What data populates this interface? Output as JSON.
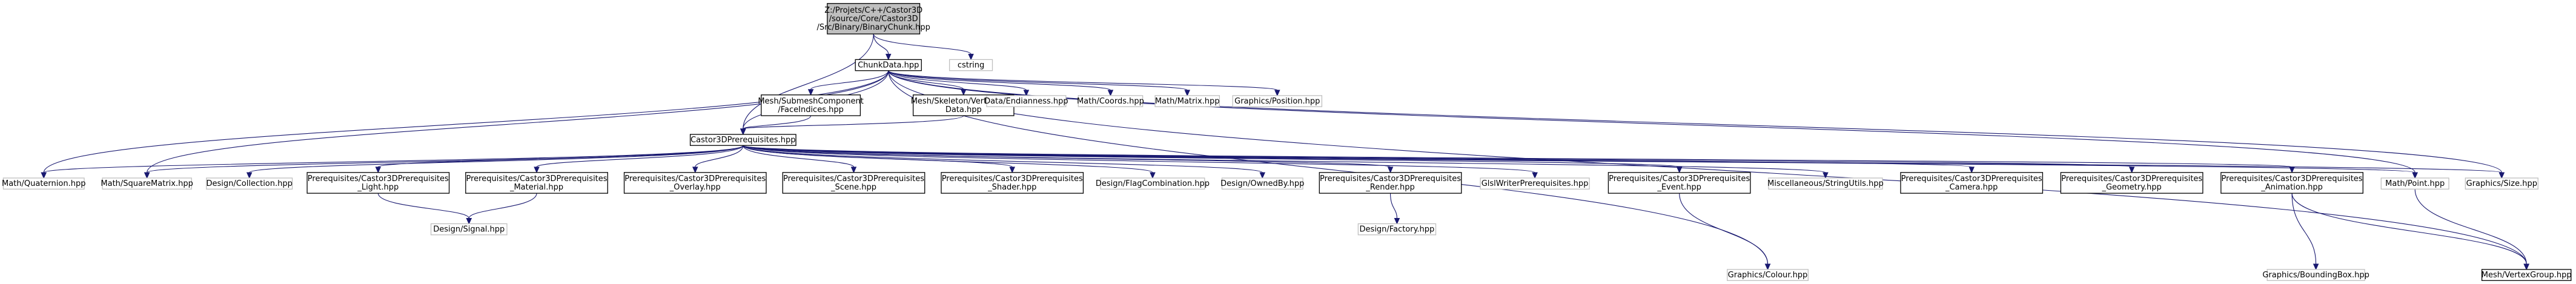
{
  "graph": {
    "nodes": [
      {
        "id": "binarychunk",
        "lines": [
          "Z:/Projets/C++/Castor3D",
          "/source/Core/Castor3D",
          "/Src/Binary/BinaryChunk.hpp"
        ],
        "style": "root"
      },
      {
        "id": "chunkdata",
        "lines": [
          "ChunkData.hpp"
        ],
        "style": "documented"
      },
      {
        "id": "cstring",
        "lines": [
          "cstring"
        ],
        "style": "external"
      },
      {
        "id": "facetindices",
        "lines": [
          "Mesh/SubmeshComponent",
          "/FaceIndices.hpp"
        ],
        "style": "documented"
      },
      {
        "id": "skeletonvertexbone",
        "lines": [
          "Mesh/Skeleton/VertexBone",
          "Data.hpp"
        ],
        "style": "documented"
      },
      {
        "id": "endianness",
        "lines": [
          "Data/Endianness.hpp"
        ],
        "style": "external"
      },
      {
        "id": "coords",
        "lines": [
          "Math/Coords.hpp"
        ],
        "style": "external"
      },
      {
        "id": "matrix",
        "lines": [
          "Math/Matrix.hpp"
        ],
        "style": "external"
      },
      {
        "id": "position",
        "lines": [
          "Graphics/Position.hpp"
        ],
        "style": "external"
      },
      {
        "id": "castor3dprereq",
        "lines": [
          "Castor3DPrerequisites.hpp"
        ],
        "style": "documented"
      },
      {
        "id": "quaternion",
        "lines": [
          "Math/Quaternion.hpp"
        ],
        "style": "external"
      },
      {
        "id": "squarematrix",
        "lines": [
          "Math/SquareMatrix.hpp"
        ],
        "style": "external"
      },
      {
        "id": "collection",
        "lines": [
          "Design/Collection.hpp"
        ],
        "style": "external"
      },
      {
        "id": "prereqlight",
        "lines": [
          "Prerequisites/Castor3DPrerequisites",
          "_Light.hpp"
        ],
        "style": "documented"
      },
      {
        "id": "prereqmaterial",
        "lines": [
          "Prerequisites/Castor3DPrerequisites",
          "_Material.hpp"
        ],
        "style": "documented"
      },
      {
        "id": "prereqoverlay",
        "lines": [
          "Prerequisites/Castor3DPrerequisites",
          "_Overlay.hpp"
        ],
        "style": "documented"
      },
      {
        "id": "prereqscene",
        "lines": [
          "Prerequisites/Castor3DPrerequisites",
          "_Scene.hpp"
        ],
        "style": "documented"
      },
      {
        "id": "prereqshader",
        "lines": [
          "Prerequisites/Castor3DPrerequisites",
          "_Shader.hpp"
        ],
        "style": "documented"
      },
      {
        "id": "flagcombination",
        "lines": [
          "Design/FlagCombination.hpp"
        ],
        "style": "external"
      },
      {
        "id": "ownedby",
        "lines": [
          "Design/OwnedBy.hpp"
        ],
        "style": "external"
      },
      {
        "id": "prereqrender",
        "lines": [
          "Prerequisites/Castor3DPrerequisites",
          "_Render.hpp"
        ],
        "style": "documented"
      },
      {
        "id": "glslwriter",
        "lines": [
          "GlslWriterPrerequisites.hpp"
        ],
        "style": "external"
      },
      {
        "id": "prereqevent",
        "lines": [
          "Prerequisites/Castor3DPrerequisites",
          "_Event.hpp"
        ],
        "style": "documented"
      },
      {
        "id": "stringutils",
        "lines": [
          "Miscellaneous/StringUtils.hpp"
        ],
        "style": "external"
      },
      {
        "id": "prereqcamera",
        "lines": [
          "Prerequisites/Castor3DPrerequisites",
          "_Camera.hpp"
        ],
        "style": "documented"
      },
      {
        "id": "prereqgeometry",
        "lines": [
          "Prerequisites/Castor3DPrerequisites",
          "_Geometry.hpp"
        ],
        "style": "documented"
      },
      {
        "id": "prereqanimation",
        "lines": [
          "Prerequisites/Castor3DPrerequisites",
          "_Animation.hpp"
        ],
        "style": "documented"
      },
      {
        "id": "point",
        "lines": [
          "Math/Point.hpp"
        ],
        "style": "external"
      },
      {
        "id": "size",
        "lines": [
          "Graphics/Size.hpp"
        ],
        "style": "external"
      },
      {
        "id": "signal",
        "lines": [
          "Design/Signal.hpp"
        ],
        "style": "external"
      },
      {
        "id": "factory",
        "lines": [
          "Design/Factory.hpp"
        ],
        "style": "external"
      },
      {
        "id": "colour",
        "lines": [
          "Graphics/Colour.hpp"
        ],
        "style": "external"
      },
      {
        "id": "boundingbox",
        "lines": [
          "Graphics/BoundingBox.hpp"
        ],
        "style": "external"
      },
      {
        "id": "vertexgroup",
        "lines": [
          "Mesh/VertexGroup.hpp"
        ],
        "style": "documented"
      }
    ],
    "edges": [
      [
        "binarychunk",
        "chunkdata"
      ],
      [
        "binarychunk",
        "cstring"
      ],
      [
        "binarychunk",
        "castor3dprereq"
      ],
      [
        "chunkdata",
        "facetindices"
      ],
      [
        "chunkdata",
        "skeletonvertexbone"
      ],
      [
        "chunkdata",
        "endianness"
      ],
      [
        "chunkdata",
        "coords"
      ],
      [
        "chunkdata",
        "matrix"
      ],
      [
        "chunkdata",
        "position"
      ],
      [
        "chunkdata",
        "castor3dprereq"
      ],
      [
        "chunkdata",
        "quaternion"
      ],
      [
        "chunkdata",
        "squarematrix"
      ],
      [
        "chunkdata",
        "point"
      ],
      [
        "chunkdata",
        "size"
      ],
      [
        "chunkdata",
        "colour"
      ],
      [
        "chunkdata",
        "vertexgroup"
      ],
      [
        "facetindices",
        "castor3dprereq"
      ],
      [
        "skeletonvertexbone",
        "castor3dprereq"
      ],
      [
        "castor3dprereq",
        "quaternion"
      ],
      [
        "castor3dprereq",
        "squarematrix"
      ],
      [
        "castor3dprereq",
        "collection"
      ],
      [
        "castor3dprereq",
        "prereqlight"
      ],
      [
        "castor3dprereq",
        "prereqmaterial"
      ],
      [
        "castor3dprereq",
        "prereqoverlay"
      ],
      [
        "castor3dprereq",
        "prereqscene"
      ],
      [
        "castor3dprereq",
        "prereqshader"
      ],
      [
        "castor3dprereq",
        "flagcombination"
      ],
      [
        "castor3dprereq",
        "ownedby"
      ],
      [
        "castor3dprereq",
        "prereqrender"
      ],
      [
        "castor3dprereq",
        "glslwriter"
      ],
      [
        "castor3dprereq",
        "prereqevent"
      ],
      [
        "castor3dprereq",
        "stringutils"
      ],
      [
        "castor3dprereq",
        "prereqcamera"
      ],
      [
        "castor3dprereq",
        "prereqgeometry"
      ],
      [
        "castor3dprereq",
        "prereqanimation"
      ],
      [
        "castor3dprereq",
        "point"
      ],
      [
        "castor3dprereq",
        "size"
      ],
      [
        "prereqlight",
        "signal"
      ],
      [
        "prereqmaterial",
        "signal"
      ],
      [
        "prereqrender",
        "factory"
      ],
      [
        "prereqevent",
        "colour"
      ],
      [
        "prereqanimation",
        "boundingbox"
      ],
      [
        "prereqanimation",
        "vertexgroup"
      ],
      [
        "point",
        "vertexgroup"
      ]
    ]
  }
}
